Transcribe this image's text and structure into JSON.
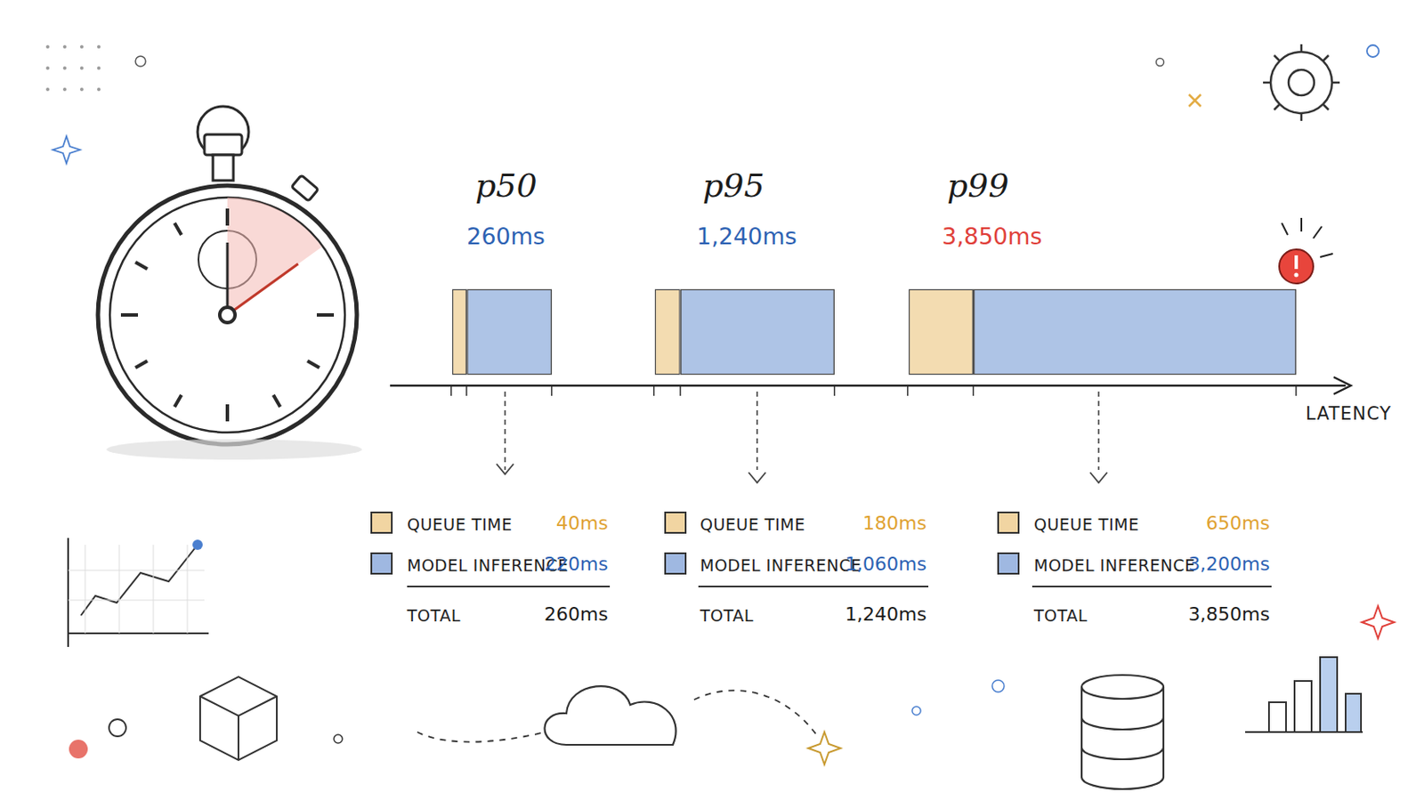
{
  "x_label": "LATENCY",
  "chart_data": [
    {
      "type": "bar",
      "orientation": "horizontal",
      "stacked": true,
      "title": "p50",
      "subtitle": "260ms",
      "categories": [
        null
      ],
      "xlim": [
        0,
        260
      ],
      "xticks": [
        0,
        40,
        260
      ],
      "tick_labels": false,
      "series": [
        {
          "name": "QUEUE TIME",
          "color": "#e3ac45",
          "values": [
            40
          ],
          "value_labels": [
            "40ms"
          ]
        },
        {
          "name": "MODEL INFERENCE",
          "color": "#3f72c4",
          "values": [
            220
          ],
          "value_labels": [
            "220ms"
          ]
        }
      ],
      "total_name": "TOTAL",
      "total_label": "260ms"
    },
    {
      "type": "bar",
      "orientation": "horizontal",
      "stacked": true,
      "title": "p95",
      "subtitle": "1,240ms",
      "categories": [
        null
      ],
      "xlim": [
        0,
        1240
      ],
      "xticks": [
        0,
        180,
        1240
      ],
      "tick_labels": false,
      "series": [
        {
          "name": "QUEUE TIME",
          "color": "#e3ac45",
          "values": [
            180
          ],
          "value_labels": [
            "180ms"
          ]
        },
        {
          "name": "MODEL INFERENCE",
          "color": "#3f72c4",
          "values": [
            1060
          ],
          "value_labels": [
            "1,060ms"
          ]
        }
      ],
      "total_name": "TOTAL",
      "total_label": "1,240ms"
    },
    {
      "type": "bar",
      "orientation": "horizontal",
      "stacked": true,
      "title": "p99",
      "subtitle": "3,850ms",
      "categories": [
        null
      ],
      "xlim": [
        0,
        3850
      ],
      "xticks": [
        0,
        650,
        3850
      ],
      "tick_labels": false,
      "series": [
        {
          "name": "QUEUE TIME",
          "color": "#e3ac45",
          "values": [
            650
          ],
          "value_labels": [
            "650ms"
          ]
        },
        {
          "name": "MODEL INFERENCE",
          "color": "#3f72c4",
          "values": [
            3200
          ],
          "value_labels": [
            "3,200ms"
          ]
        }
      ],
      "total_name": "TOTAL",
      "total_label": "3,850ms"
    }
  ]
}
